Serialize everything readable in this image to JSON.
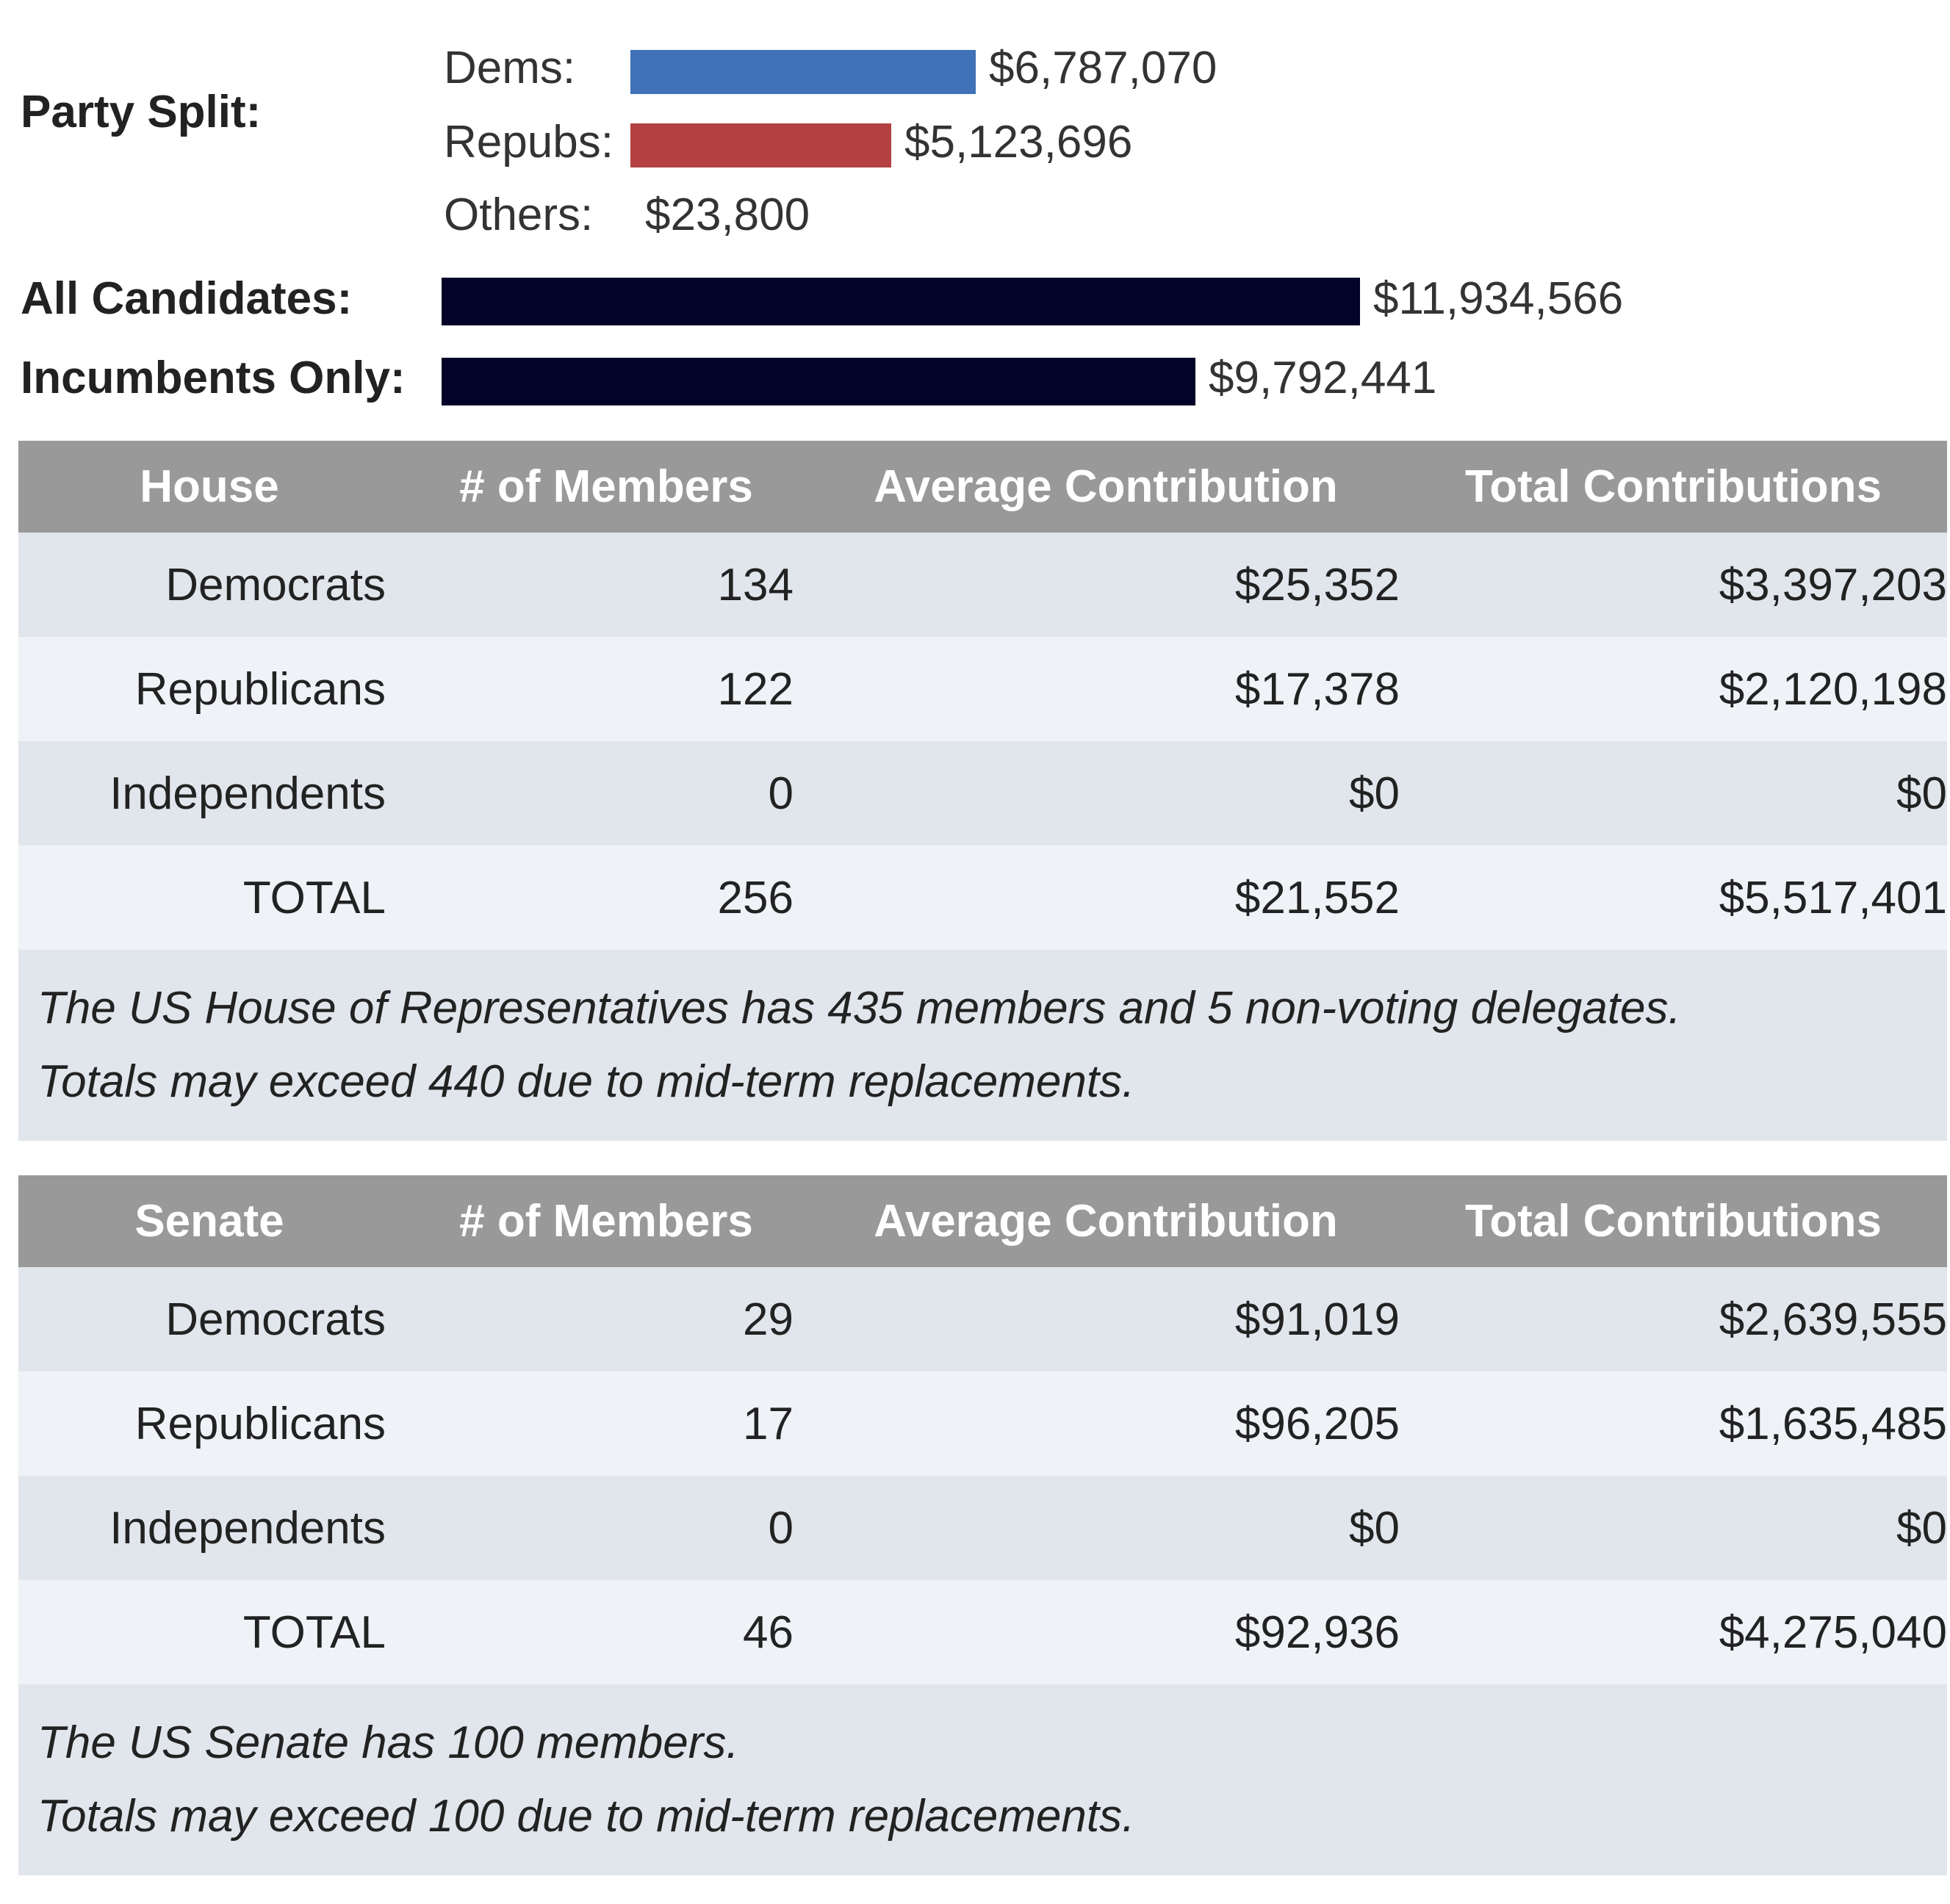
{
  "summary": {
    "party_split_label": "Party Split:",
    "dems_label": "Dems:",
    "dems_value": "$6,787,070",
    "repubs_label": "Repubs:",
    "repubs_value": "$5,123,696",
    "others_label": "Others:",
    "others_value": "$23,800",
    "all_label": "All Candidates:",
    "all_value": "$11,934,566",
    "incumbents_label": "Incumbents Only:",
    "incumbents_value": "$9,792,441",
    "amounts": {
      "dems": 6787070,
      "repubs": 5123696,
      "all": 11934566,
      "incumbents": 9792441
    },
    "colors": {
      "dems": "#3f72b6",
      "repubs": "#b34141",
      "totals": "#03032a"
    }
  },
  "house": {
    "headers": [
      "House",
      "# of Members",
      "Average Contribution",
      "Total Contributions"
    ],
    "rows": [
      [
        "Democrats",
        "134",
        "$25,352",
        "$3,397,203"
      ],
      [
        "Republicans",
        "122",
        "$17,378",
        "$2,120,198"
      ],
      [
        "Independents",
        "0",
        "$0",
        "$0"
      ],
      [
        "TOTAL",
        "256",
        "$21,552",
        "$5,517,401"
      ]
    ],
    "note_line1": "The US House of Representatives has 435 members and 5 non-voting delegates.",
    "note_line2": "Totals may exceed 440 due to mid-term replacements."
  },
  "senate": {
    "headers": [
      "Senate",
      "# of Members",
      "Average Contribution",
      "Total Contributions"
    ],
    "rows": [
      [
        "Democrats",
        "29",
        "$91,019",
        "$2,639,555"
      ],
      [
        "Republicans",
        "17",
        "$96,205",
        "$1,635,485"
      ],
      [
        "Independents",
        "0",
        "$0",
        "$0"
      ],
      [
        "TOTAL",
        "46",
        "$92,936",
        "$4,275,040"
      ]
    ],
    "note_line1": "The US Senate has 100 members.",
    "note_line2": "Totals may exceed 100 due to mid-term replacements."
  }
}
